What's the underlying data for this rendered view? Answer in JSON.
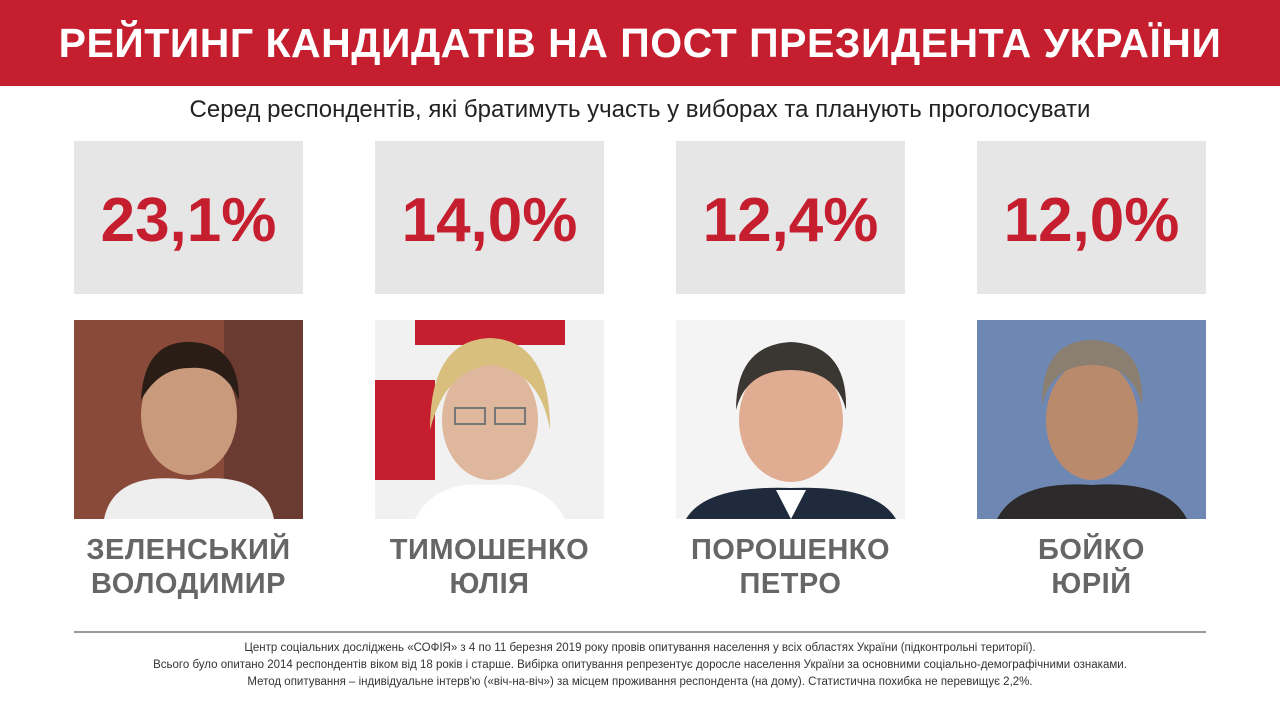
{
  "header": {
    "title": "РЕЙТИНГ КАНДИДАТІВ НА ПОСТ ПРЕЗИДЕНТА УКРАЇНИ",
    "subtitle": "Серед респондентів, які братимуть участь у виборах та планують проголосувати"
  },
  "candidates": [
    {
      "rating": "23,1%",
      "surname": "ЗЕЛЕНСЬКИЙ",
      "first_name": "ВОЛОДИМИР"
    },
    {
      "rating": "14,0%",
      "surname": "ТИМОШЕНКО",
      "first_name": "ЮЛІЯ"
    },
    {
      "rating": "12,4%",
      "surname": "ПОРОШЕНКО",
      "first_name": "ПЕТРО"
    },
    {
      "rating": "12,0%",
      "surname": "БОЙКО",
      "first_name": "ЮРІЙ"
    }
  ],
  "footer": {
    "lines": [
      "Центр соціальних досліджень «СОФІЯ» з 4 по 11 березня 2019 року провів опитування населення у всіх областях України (підконтрольні території).",
      "Всього було опитано 2014 респондентів віком від 18 років і старше. Вибірка опитування репрезентує доросле населення України за основними соціально-демографічними ознаками.",
      "Метод опитування – індивідуальне інтерв'ю («віч-на-віч») за місцем проживання респондента (на дому). Статистична похибка не перевищує 2,2%."
    ]
  }
}
